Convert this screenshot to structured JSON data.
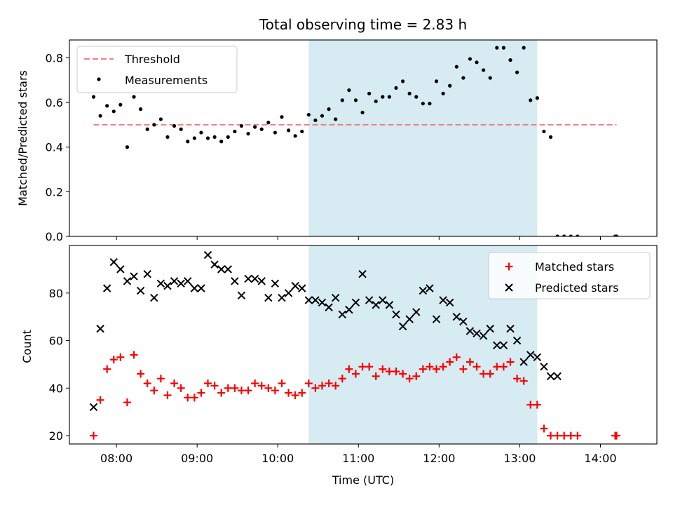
{
  "title": "Total observing time = 2.83 h",
  "xlabel": "Time (UTC)",
  "colors": {
    "threshold": "#f08080",
    "measurement": "#000000",
    "matched": "#ff0000",
    "predicted": "#000000",
    "shade": "#add8e6"
  },
  "chart_data": [
    {
      "type": "scatter",
      "ylabel": "Matched/Predicted stars",
      "ylim": [
        0,
        0.88
      ],
      "yticks": [
        "0.0",
        "0.2",
        "0.4",
        "0.6",
        "0.8"
      ],
      "ytick_values": [
        0.0,
        0.2,
        0.4,
        0.6,
        0.8
      ],
      "legend": {
        "placement": "upper-left",
        "entries": [
          "Threshold",
          "Measurements"
        ]
      },
      "shaded_interval": [
        "10:23",
        "13:13"
      ],
      "threshold": {
        "name": "Threshold",
        "value": 0.5,
        "x_start": "07:43",
        "x_end": "14:12"
      },
      "series": [
        {
          "name": "Measurements",
          "x": [
            "07:43",
            "07:48",
            "07:53",
            "07:58",
            "08:03",
            "08:08",
            "08:13",
            "08:18",
            "08:23",
            "08:28",
            "08:33",
            "08:38",
            "08:43",
            "08:48",
            "08:53",
            "08:58",
            "09:03",
            "09:08",
            "09:13",
            "09:18",
            "09:23",
            "09:28",
            "09:33",
            "09:38",
            "09:43",
            "09:48",
            "09:53",
            "09:58",
            "10:03",
            "10:08",
            "10:13",
            "10:18",
            "10:23",
            "10:28",
            "10:33",
            "10:38",
            "10:43",
            "10:48",
            "10:53",
            "10:58",
            "11:03",
            "11:08",
            "11:13",
            "11:18",
            "11:23",
            "11:28",
            "11:33",
            "11:38",
            "11:43",
            "11:48",
            "11:53",
            "11:58",
            "12:03",
            "12:08",
            "12:13",
            "12:18",
            "12:23",
            "12:28",
            "12:33",
            "12:38",
            "12:43",
            "12:48",
            "12:53",
            "12:58",
            "13:03",
            "13:08",
            "13:13",
            "13:18",
            "13:23",
            "13:28",
            "13:33",
            "13:38",
            "13:43",
            "14:11",
            "14:12"
          ],
          "y": [
            0.625,
            0.54,
            0.585,
            0.56,
            0.59,
            0.4,
            0.625,
            0.57,
            0.48,
            0.5,
            0.525,
            0.445,
            0.495,
            0.48,
            0.425,
            0.44,
            0.465,
            0.44,
            0.445,
            0.425,
            0.445,
            0.47,
            0.495,
            0.46,
            0.49,
            0.48,
            0.51,
            0.465,
            0.535,
            0.475,
            0.45,
            0.47,
            0.545,
            0.52,
            0.54,
            0.57,
            0.525,
            0.61,
            0.655,
            0.61,
            0.555,
            0.64,
            0.605,
            0.625,
            0.625,
            0.665,
            0.695,
            0.64,
            0.625,
            0.595,
            0.595,
            0.695,
            0.64,
            0.675,
            0.76,
            0.71,
            0.795,
            0.78,
            0.745,
            0.71,
            0.845,
            0.845,
            0.79,
            0.735,
            0.845,
            0.61,
            0.62,
            0.47,
            0.445,
            0.0,
            0.0,
            0.0,
            0.0,
            0.0,
            0.0
          ]
        }
      ]
    },
    {
      "type": "scatter",
      "ylabel": "Count",
      "ylim": [
        16.5,
        100
      ],
      "yticks": [
        "20",
        "40",
        "60",
        "80"
      ],
      "ytick_values": [
        20,
        40,
        60,
        80
      ],
      "xlim": [
        "07:25",
        "14:42"
      ],
      "xticks": [
        "08:00",
        "09:00",
        "10:00",
        "11:00",
        "12:00",
        "13:00",
        "14:00"
      ],
      "legend": {
        "placement": "upper-right",
        "entries": [
          "Matched stars",
          "Predicted stars"
        ]
      },
      "shaded_interval": [
        "10:23",
        "13:13"
      ],
      "series": [
        {
          "name": "Matched stars",
          "x": [
            "07:43",
            "07:48",
            "07:53",
            "07:58",
            "08:03",
            "08:08",
            "08:13",
            "08:18",
            "08:23",
            "08:28",
            "08:33",
            "08:38",
            "08:43",
            "08:48",
            "08:53",
            "08:58",
            "09:03",
            "09:08",
            "09:13",
            "09:18",
            "09:23",
            "09:28",
            "09:33",
            "09:38",
            "09:43",
            "09:48",
            "09:53",
            "09:58",
            "10:03",
            "10:08",
            "10:13",
            "10:18",
            "10:23",
            "10:28",
            "10:33",
            "10:38",
            "10:43",
            "10:48",
            "10:53",
            "10:58",
            "11:03",
            "11:08",
            "11:13",
            "11:18",
            "11:23",
            "11:28",
            "11:33",
            "11:38",
            "11:43",
            "11:48",
            "11:53",
            "11:58",
            "12:03",
            "12:08",
            "12:13",
            "12:18",
            "12:23",
            "12:28",
            "12:33",
            "12:38",
            "12:43",
            "12:48",
            "12:53",
            "12:58",
            "13:03",
            "13:08",
            "13:13",
            "13:18",
            "13:23",
            "13:28",
            "13:33",
            "13:38",
            "13:43",
            "14:11",
            "14:12"
          ],
          "y": [
            20,
            35,
            48,
            52,
            53,
            34,
            54,
            46,
            42,
            39,
            44,
            37,
            42,
            40,
            36,
            36,
            38,
            42,
            41,
            38,
            40,
            40,
            39,
            39,
            42,
            41,
            40,
            39,
            42,
            38,
            37,
            38,
            42,
            40,
            41,
            42,
            41,
            44,
            48,
            46,
            49,
            49,
            45,
            48,
            47,
            47,
            46,
            44,
            45,
            48,
            49,
            48,
            49,
            51,
            53,
            48,
            51,
            49,
            46,
            46,
            49,
            49,
            51,
            44,
            43,
            33,
            33,
            23,
            20,
            20,
            20,
            20,
            20,
            20,
            20
          ]
        },
        {
          "name": "Predicted stars",
          "x": [
            "07:43",
            "07:48",
            "07:53",
            "07:58",
            "08:03",
            "08:08",
            "08:13",
            "08:18",
            "08:23",
            "08:28",
            "08:33",
            "08:38",
            "08:43",
            "08:48",
            "08:53",
            "08:58",
            "09:03",
            "09:08",
            "09:13",
            "09:18",
            "09:23",
            "09:28",
            "09:33",
            "09:38",
            "09:43",
            "09:48",
            "09:53",
            "09:58",
            "10:03",
            "10:08",
            "10:13",
            "10:18",
            "10:23",
            "10:28",
            "10:33",
            "10:38",
            "10:43",
            "10:48",
            "10:53",
            "10:58",
            "11:03",
            "11:08",
            "11:13",
            "11:18",
            "11:23",
            "11:28",
            "11:33",
            "11:38",
            "11:43",
            "11:48",
            "11:53",
            "11:58",
            "12:03",
            "12:08",
            "12:13",
            "12:18",
            "12:23",
            "12:28",
            "12:33",
            "12:38",
            "12:43",
            "12:48",
            "12:53",
            "12:58",
            "13:03",
            "13:08",
            "13:13",
            "13:18",
            "13:23",
            "13:28"
          ],
          "y": [
            32,
            65,
            82,
            93,
            90,
            85,
            87,
            81,
            88,
            78,
            84,
            83,
            85,
            84,
            85,
            82,
            82,
            96,
            92,
            90,
            90,
            85,
            79,
            86,
            86,
            85,
            78,
            84,
            78,
            80,
            83,
            82,
            77,
            77,
            76,
            74,
            78,
            71,
            73,
            76,
            88,
            77,
            75,
            77,
            75,
            71,
            66,
            69,
            72,
            81,
            82,
            69,
            77,
            76,
            70,
            68,
            64,
            63,
            62,
            65,
            58,
            58,
            65,
            60,
            51,
            54,
            53,
            49,
            45,
            45
          ]
        }
      ]
    }
  ]
}
